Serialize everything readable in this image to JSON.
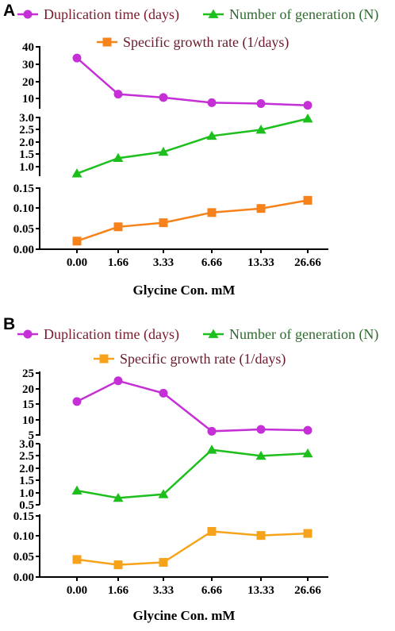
{
  "colors": {
    "duplication": "#c42fd6",
    "generation": "#1dbf1d",
    "growth": "#f7821b",
    "growth_b": "#f7a21b",
    "legend_text_dup": "#7a1a2a",
    "legend_text_gen": "#2f6b2f",
    "legend_text_growth": "#6a1a2a"
  },
  "chart_data": [
    {
      "panel": "A",
      "type": "line",
      "xlabel": "Glycine Con. mM",
      "categories": [
        "0.00",
        "1.66",
        "3.33",
        "6.66",
        "13.33",
        "26.66"
      ],
      "legend": [
        {
          "key": "duplication",
          "label": "Duplication time (days)",
          "marker": "circle"
        },
        {
          "key": "generation",
          "label": "Number of generation (N)",
          "marker": "triangle"
        },
        {
          "key": "growth",
          "label": "Specific growth rate (1/days)",
          "marker": "square"
        }
      ],
      "segments": [
        {
          "series": "duplication",
          "ylim": [
            5,
            40
          ],
          "ticks": [
            "40",
            "30",
            "20",
            "10"
          ],
          "tick_values": [
            40,
            30,
            20,
            10
          ],
          "values": [
            33.5,
            12.5,
            10.5,
            7.5,
            7.0,
            6.0
          ]
        },
        {
          "series": "generation",
          "ylim": [
            0.5,
            3.0
          ],
          "ticks": [
            "3.0",
            "2.5",
            "2.0",
            "1.5",
            "1.0"
          ],
          "tick_values": [
            3.0,
            2.5,
            2.0,
            1.5,
            1.0
          ],
          "values": [
            0.72,
            1.35,
            1.6,
            2.25,
            2.5,
            2.95
          ]
        },
        {
          "series": "growth",
          "ylim": [
            0.0,
            0.15
          ],
          "ticks": [
            "0.15",
            "0.10",
            "0.05",
            "0.00"
          ],
          "tick_values": [
            0.15,
            0.1,
            0.05,
            0.0
          ],
          "values": [
            0.02,
            0.055,
            0.065,
            0.09,
            0.1,
            0.12
          ]
        }
      ]
    },
    {
      "panel": "B",
      "type": "line",
      "xlabel": "Glycine Con. mM",
      "categories": [
        "0.00",
        "1.66",
        "3.33",
        "6.66",
        "13.33",
        "26.66"
      ],
      "legend": [
        {
          "key": "duplication",
          "label": "Duplication time (days)",
          "marker": "circle"
        },
        {
          "key": "generation",
          "label": "Number of generation (N)",
          "marker": "triangle"
        },
        {
          "key": "growth",
          "label": "Specific growth rate (1/days)",
          "marker": "square"
        }
      ],
      "segments": [
        {
          "series": "duplication",
          "ylim": [
            5,
            25
          ],
          "ticks": [
            "25",
            "20",
            "15",
            "10",
            "5"
          ],
          "tick_values": [
            25,
            20,
            15,
            10,
            5
          ],
          "values": [
            15.8,
            22.5,
            18.5,
            6.2,
            6.8,
            6.5
          ]
        },
        {
          "series": "generation",
          "ylim": [
            0.5,
            3.0
          ],
          "ticks": [
            "3.0",
            "2.5",
            "2.0",
            "1.5",
            "1.0",
            "0.5"
          ],
          "tick_values": [
            3.0,
            2.5,
            2.0,
            1.5,
            1.0,
            0.5
          ],
          "values": [
            1.08,
            0.78,
            0.93,
            2.75,
            2.5,
            2.6
          ]
        },
        {
          "series": "growth",
          "ylim": [
            0.0,
            0.15
          ],
          "ticks": [
            "0.15",
            "0.10",
            "0.05",
            "0.00"
          ],
          "tick_values": [
            0.15,
            0.1,
            0.05,
            0.0
          ],
          "values": [
            0.043,
            0.03,
            0.036,
            0.112,
            0.102,
            0.107
          ]
        }
      ]
    }
  ]
}
